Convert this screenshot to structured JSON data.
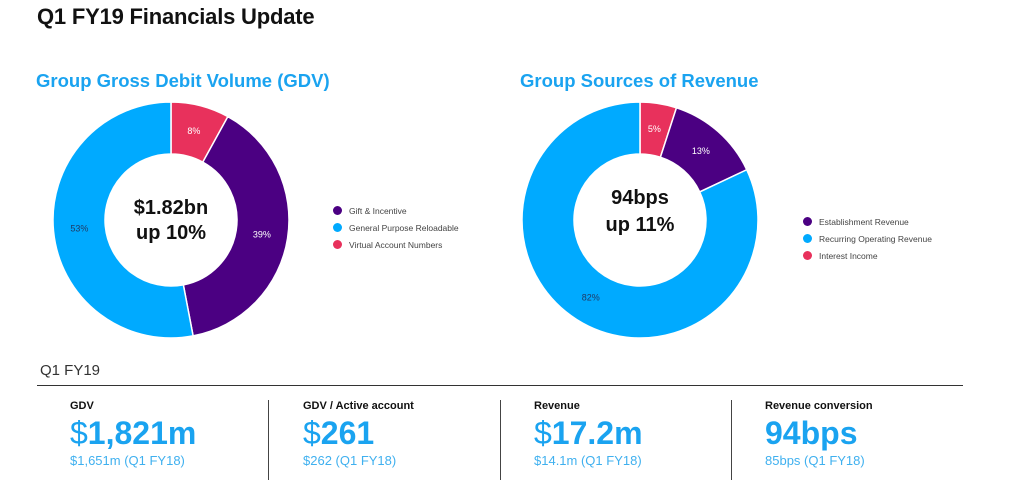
{
  "page_title": "Q1 FY19 Financials Update",
  "charts": {
    "gdv": {
      "title": "Group Gross Debit Volume (GDV)",
      "center_line1": "$1.82bn",
      "center_line2": "up 10%"
    },
    "revenue": {
      "title": "Group Sources of Revenue",
      "center_line1": "94bps",
      "center_line2": "up 11%"
    }
  },
  "chart_data": [
    {
      "type": "pie",
      "donut": true,
      "title": "Group Gross Debit Volume (GDV)",
      "categories": [
        "Virtual Account Numbers",
        "Gift & Incentive",
        "General Purpose Reloadable"
      ],
      "values": [
        8,
        39,
        53
      ],
      "value_labels": [
        "8%",
        "39%",
        "53%"
      ],
      "colors": [
        "#e8315c",
        "#4b0082",
        "#00aaff"
      ],
      "legend": [
        "Gift & Incentive",
        "General Purpose Reloadable",
        "Virtual Account Numbers"
      ],
      "legend_colors": [
        "#4b0082",
        "#00aaff",
        "#e8315c"
      ],
      "legend_placement": "right"
    },
    {
      "type": "pie",
      "donut": true,
      "title": "Group Sources of Revenue",
      "categories": [
        "Interest Income",
        "Establishment Revenue",
        "Recurring Operating Revenue"
      ],
      "values": [
        5,
        13,
        82
      ],
      "value_labels": [
        "5%",
        "13%",
        "82%"
      ],
      "colors": [
        "#e8315c",
        "#4b0082",
        "#00aaff"
      ],
      "legend": [
        "Establishment Revenue",
        "Recurring Operating Revenue",
        "Interest Income"
      ],
      "legend_colors": [
        "#4b0082",
        "#00aaff",
        "#e8315c"
      ],
      "legend_placement": "right"
    }
  ],
  "kpi_section": {
    "period": "Q1 FY19",
    "items": [
      {
        "label": "GDV",
        "currency": "$",
        "value": "1,821m",
        "compare": "$1,651m (Q1 FY18)"
      },
      {
        "label": "GDV / Active account",
        "currency": "$",
        "value": "261",
        "compare": "$262 (Q1 FY18)"
      },
      {
        "label": "Revenue",
        "currency": "$",
        "value": "17.2m",
        "compare": "$14.1m (Q1 FY18)"
      },
      {
        "label": "Revenue conversion",
        "currency": "",
        "value": "94bps",
        "compare": "85bps (Q1 FY18)"
      }
    ]
  },
  "colors": {
    "accent": "#1aa3f0",
    "purple": "#4b0082",
    "blue": "#00aaff",
    "pink": "#e8315c"
  }
}
